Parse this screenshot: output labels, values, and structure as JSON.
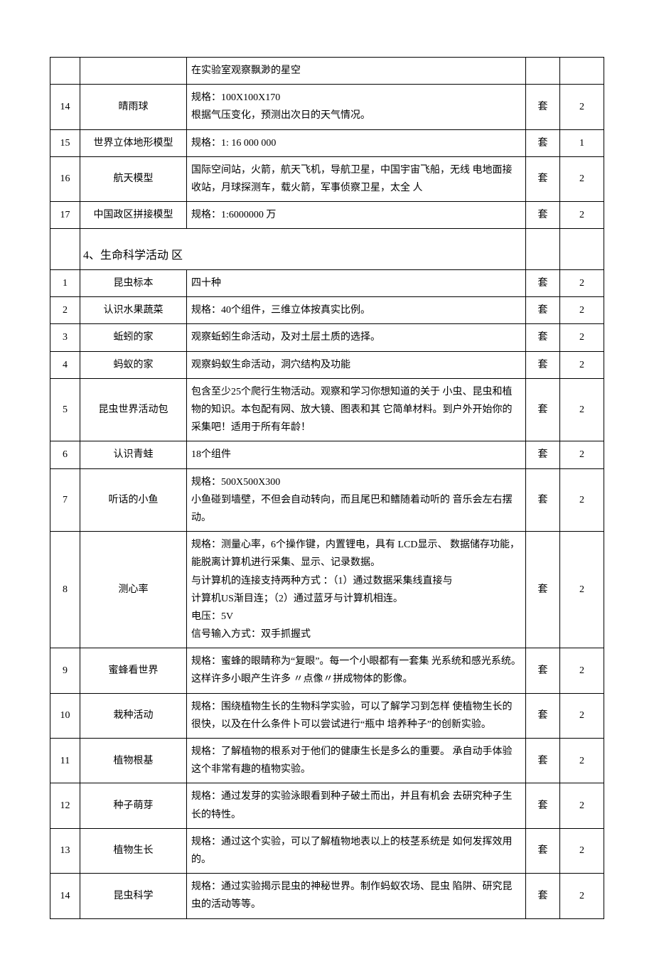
{
  "partial_row": {
    "desc": "在实验室观察飘渺的星空"
  },
  "section_a": {
    "rows": [
      {
        "num": "14",
        "name": "晴雨球",
        "desc": "规格：100X100X170\n根据气压变化，预测出次日的天气情况。",
        "unit": "套",
        "qty": "2"
      },
      {
        "num": "15",
        "name": "世界立体地形模型",
        "desc": "规格：1: 16 000 000",
        "unit": "套",
        "qty": "1"
      },
      {
        "num": "16",
        "name": "航天模型",
        "desc": " 国际空间站，火箭，航天飞机，导航卫星，中国宇宙飞船，无线 电地面接收站，月球探测车，载火箭，军事侦察卫星，太全 人",
        "unit": "套",
        "qty": "2"
      },
      {
        "num": "17",
        "name": "中国政区拼接模型",
        "desc": "规格：1:6000000 万",
        "unit": "套",
        "qty": "2"
      }
    ]
  },
  "section_b": {
    "title": "4、生命科学活动  区",
    "rows": [
      {
        "num": "1",
        "name": "昆虫标本",
        "desc": "四十种",
        "unit": "套",
        "qty": "2"
      },
      {
        "num": "2",
        "name": "认识水果蔬菜",
        "desc": "规格：40个组件，三维立体按真实比例。",
        "unit": "套",
        "qty": "2"
      },
      {
        "num": "3",
        "name": "蚯蚓的家",
        "desc": "观察蚯蚓生命活动，及对土层土质的选择。",
        "unit": "套",
        "qty": "2"
      },
      {
        "num": "4",
        "name": "蚂蚁的家",
        "desc": "观察蚂蚁生命活动，洞穴结构及功能",
        "unit": "套",
        "qty": "2"
      },
      {
        "num": "5",
        "name": "昆虫世界活动包",
        "desc": " 包含至少25个爬行生物活动。观察和学习你想知道的关于 小虫、昆虫和植物的知识。本包配有网、放大镜、图表和其 它简单材料。到户外开始你的采集吧！适用于所有年龄！",
        "unit": "套",
        "qty": "2"
      },
      {
        "num": "6",
        "name": "认识青蛙",
        "desc": "18个组件",
        "unit": "套",
        "qty": "2"
      },
      {
        "num": "7",
        "name": "听话的小鱼",
        "desc": "规格：500X500X300\n 小鱼碰到墙壁，不但会自动转向，而且尾巴和鳍随着动听的 音乐会左右摆动。",
        "unit": "套",
        "qty": "2"
      },
      {
        "num": "8",
        "name": "测心率",
        "desc": " 规格：测量心率，6个操作键，内置锂电，具有 LCD显示、  数据储存功能，能脱离计算机进行采集、显示、记录数据。\n与计算机的连接支持两种方式 ：（1）通过数据采集线直接与\n计算机US渐目连；（2）通过蓝牙与计算机相连。\n电压：5V\n信号输入方式：双手抓握式",
        "unit": "套",
        "qty": "2"
      },
      {
        "num": "9",
        "name": "蜜蜂看世界",
        "desc": " 规格：蜜蜂的眼睛称为“复眼”。每一个小眼都有一套集 光系统和感光系统。            这样许多小眼产生许多 〃点像〃拼成物体的影像。",
        "unit": "套",
        "qty": "2"
      },
      {
        "num": "10",
        "name": "栽种活动",
        "desc": " 规格：围绕植物生长的生物科学实验，可以了解学习到怎样 使植物生长的很快，以及在什么条件卜可以尝试进行“瓶中 培养种子”的创新实验。",
        "unit": "套",
        "qty": "2"
      },
      {
        "num": "11",
        "name": "植物根基",
        "desc": " 规格：了解植物的根系对于他们的健康生长是多么的重要。  承自动手体验这个非常有趣的植物实验。",
        "unit": "套",
        "qty": "2"
      },
      {
        "num": "12",
        "name": "种子萌芽",
        "desc": " 规格：通过发芽的实验泳眼看到种子破土而出，并且有机会 去研究种子生长的特性。",
        "unit": "套",
        "qty": "2"
      },
      {
        "num": "13",
        "name": "植物生长",
        "desc": " 规格：通过这个实验，可以了解植物地表以上的枝茎系统是 如何发挥效用的。",
        "unit": "套",
        "qty": "2"
      },
      {
        "num": "14",
        "name": "昆虫科学",
        "desc": " 规格：通过实验揭示昆虫的神秘世界。制作蚂蚁农场、昆虫 陷阱、研究昆虫的活动等等。",
        "unit": "套",
        "qty": "2"
      }
    ]
  }
}
